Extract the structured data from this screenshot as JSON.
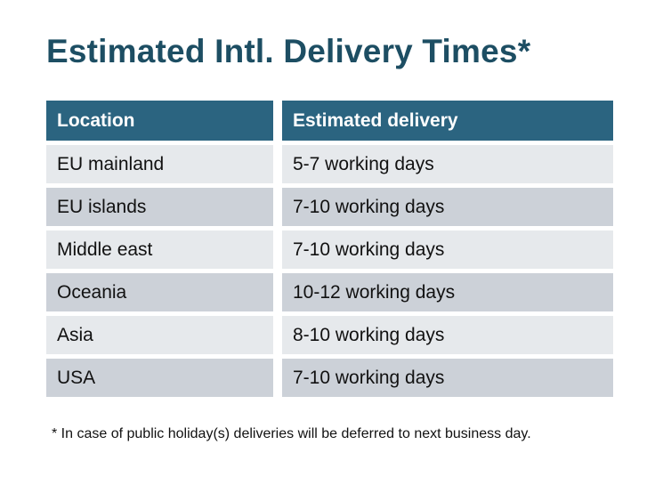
{
  "page": {
    "title": "Estimated Intl. Delivery Times*",
    "footnote": "* In case of public holiday(s) deliveries will be deferred to next business day."
  },
  "table": {
    "headers": [
      "Location",
      "Estimated delivery"
    ],
    "rows": [
      {
        "location": "EU mainland",
        "delivery": "5-7 working days"
      },
      {
        "location": "EU islands",
        "delivery": "7-10 working days"
      },
      {
        "location": "Middle east",
        "delivery": "7-10 working days"
      },
      {
        "location": "Oceania",
        "delivery": "10-12 working days"
      },
      {
        "location": "Asia",
        "delivery": "8-10 working days"
      },
      {
        "location": "USA",
        "delivery": "7-10 working days"
      }
    ]
  },
  "colors": {
    "background": "#ffffff",
    "title_text": "#1d4e63",
    "header_bg": "#2b6480",
    "header_text": "#ffffff",
    "row_dark": "#ccd1d8",
    "row_light": "#e6e9ec",
    "cell_text": "#111111"
  },
  "chart_data": {
    "type": "table",
    "title": "Estimated Intl. Delivery Times*",
    "columns": [
      "Location",
      "Estimated delivery"
    ],
    "rows": [
      [
        "EU mainland",
        "5-7 working days"
      ],
      [
        "EU islands",
        "7-10 working days"
      ],
      [
        "Middle east",
        "7-10 working days"
      ],
      [
        "Oceania",
        "10-12 working days"
      ],
      [
        "Asia",
        "8-10 working days"
      ],
      [
        "USA",
        "7-10 working days"
      ]
    ],
    "footnote": "* In case of public holiday(s) deliveries will be deferred to next business day."
  }
}
